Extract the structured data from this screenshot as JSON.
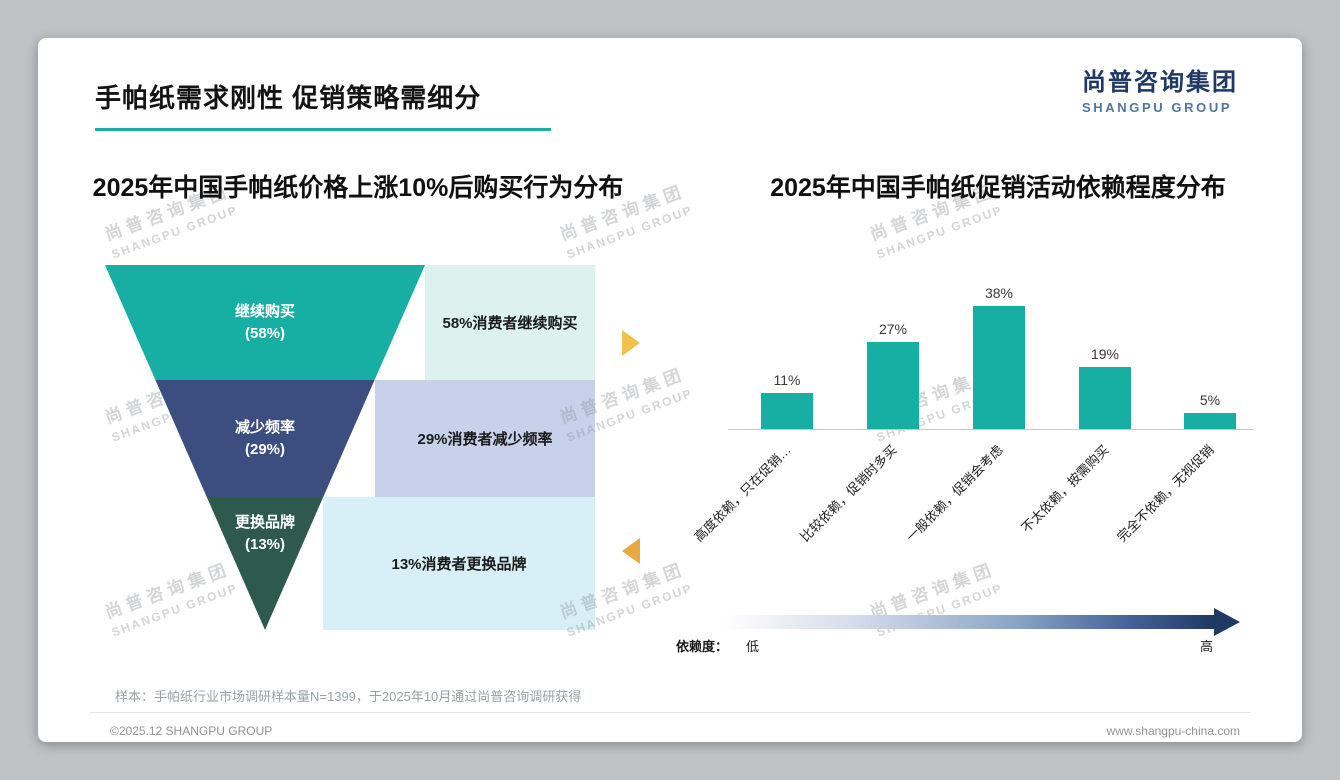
{
  "page": {
    "title": "手帕纸需求刚性 促销策略需细分",
    "logo": {
      "cn": "尚普咨询集团",
      "en": "SHANGPU GROUP"
    },
    "watermark": {
      "cn": "尚普咨询集团",
      "en": "SHANGPU GROUP"
    },
    "footnote": "样本：手帕纸行业市场调研样本量N=1399，于2025年10月通过尚普咨询调研获得",
    "footer_left": "©2025.12 SHANGPU GROUP",
    "footer_right": "www.shangpu-china.com"
  },
  "colors": {
    "teal": "#17AEA4",
    "navy": "#3C4D80",
    "dark_green": "#2E5A4E",
    "light_teal": "#DDF2EE",
    "light_lavender": "#C7D1E9",
    "light_cyan": "#D7F0F7",
    "gold": "#F2C14B",
    "gold_dark": "#E9A93F",
    "brand_navy": "#1F3864",
    "logo_en": "#52779E"
  },
  "chart_data": [
    {
      "type": "funnel",
      "title": "2025年中国手帕纸价格上涨10%后购买行为分布",
      "levels": [
        {
          "label": "继续购买",
          "pct": "(58%)",
          "value": 58,
          "annotation": "58%消费者继续购买"
        },
        {
          "label": "减少频率",
          "pct": "(29%)",
          "value": 29,
          "annotation": "29%消费者减少频率"
        },
        {
          "label": "更换品牌",
          "pct": "(13%)",
          "value": 13,
          "annotation": "13%消费者更换品牌"
        }
      ]
    },
    {
      "type": "bar",
      "title": "2025年中国手帕纸促销活动依赖程度分布",
      "categories": [
        "高度依赖，只在促销…",
        "比较依赖，促销时多买",
        "一般依赖，促销会考虑",
        "不太依赖，按需购买",
        "完全不依赖，无视促销"
      ],
      "values": [
        11,
        27,
        38,
        19,
        5
      ],
      "labels": [
        "11%",
        "27%",
        "38%",
        "19%",
        "5%"
      ],
      "ylim": [
        0,
        45
      ],
      "grid": false,
      "legend": "none",
      "axis": {
        "legend_title": "依赖度：",
        "low": "低",
        "high": "高"
      }
    }
  ]
}
